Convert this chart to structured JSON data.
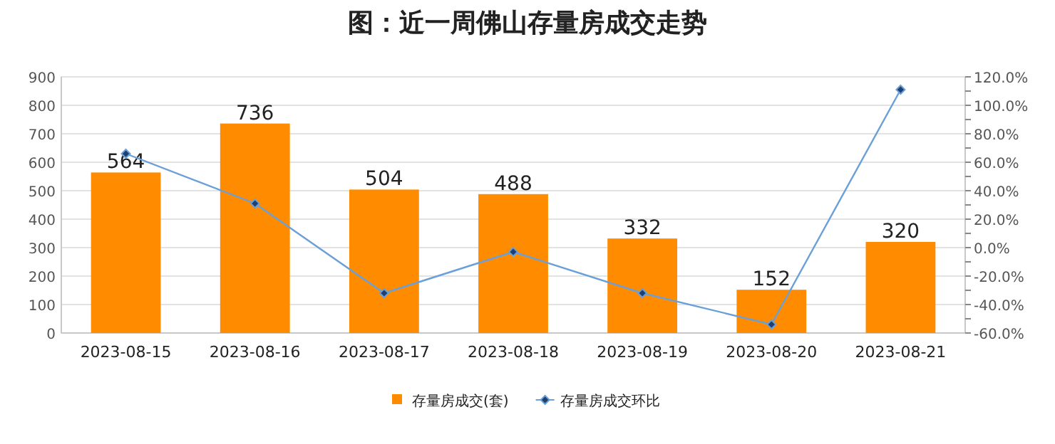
{
  "chart_data": {
    "type": "bar",
    "title": "图：近一周佛山存量房成交走势",
    "categories": [
      "2023-08-15",
      "2023-08-16",
      "2023-08-17",
      "2023-08-18",
      "2023-08-19",
      "2023-08-20",
      "2023-08-21"
    ],
    "series": [
      {
        "name": "存量房成交(套)",
        "color": "#ff8c00",
        "values": [
          564,
          736,
          504,
          488,
          332,
          152,
          320
        ],
        "value_labels": [
          "564",
          "736",
          "504",
          "488",
          "332",
          "152",
          "320"
        ]
      },
      {
        "name": "存量房成交环比",
        "type": "line",
        "axis": "y2",
        "color": "#6a9fd8",
        "marker": "diamond",
        "values": [
          66,
          31,
          -32,
          -3,
          -32,
          -54,
          111
        ]
      }
    ],
    "ylim": [
      0,
      900
    ],
    "yticks": [
      0,
      100,
      200,
      300,
      400,
      500,
      600,
      700,
      800,
      900
    ],
    "y2lim": [
      -60,
      120
    ],
    "y2ticks": [
      {
        "value": -60,
        "label": "-60.0%"
      },
      {
        "value": -50,
        "label": null
      },
      {
        "value": -40,
        "label": "-40.0%"
      },
      {
        "value": -30,
        "label": null
      },
      {
        "value": -20,
        "label": "-20.0%"
      },
      {
        "value": -10,
        "label": null
      },
      {
        "value": 0,
        "label": "0.0%"
      },
      {
        "value": 10,
        "label": null
      },
      {
        "value": 20,
        "label": "20.0%"
      },
      {
        "value": 30,
        "label": null
      },
      {
        "value": 40,
        "label": "40.0%"
      },
      {
        "value": 50,
        "label": null
      },
      {
        "value": 60,
        "label": "60.0%"
      },
      {
        "value": 70,
        "label": null
      },
      {
        "value": 80,
        "label": "80.0%"
      },
      {
        "value": 90,
        "label": null
      },
      {
        "value": 100,
        "label": "100.0%"
      },
      {
        "value": 110,
        "label": null
      },
      {
        "value": 120,
        "label": "120.0%"
      }
    ],
    "grid": "y",
    "legend": "bottom"
  }
}
